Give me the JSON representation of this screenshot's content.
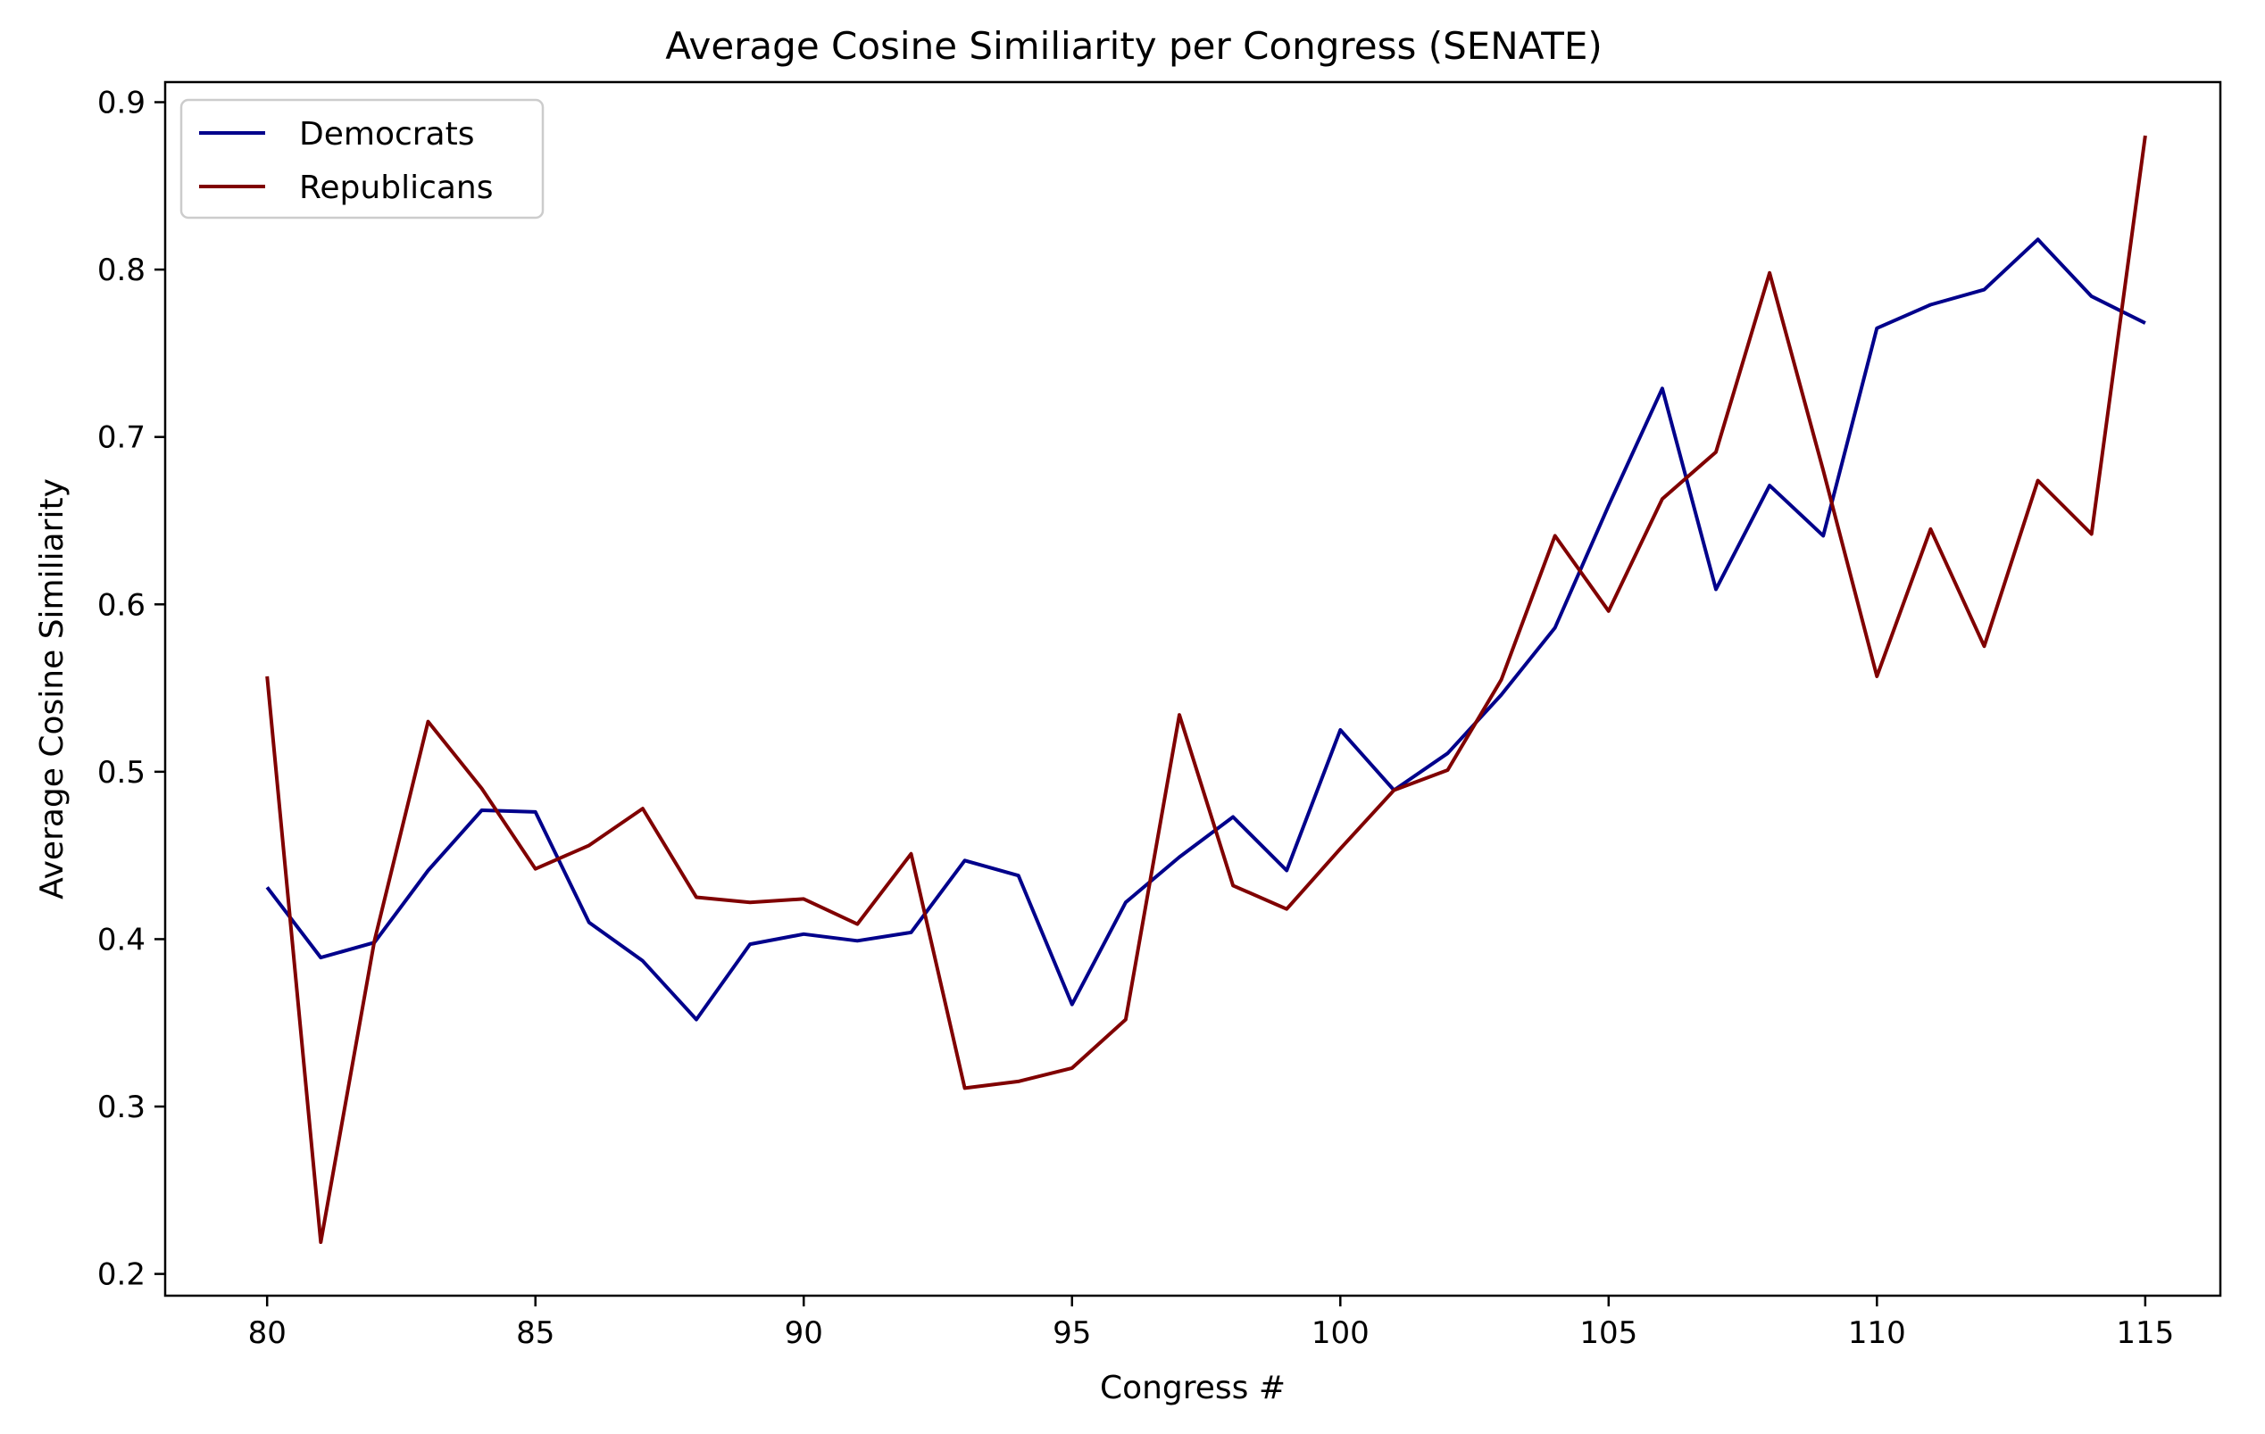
{
  "chart_data": {
    "type": "line",
    "title": "Average Cosine Similiarity per Congress (SENATE)",
    "xlabel": "Congress #",
    "ylabel": "Average Cosine Similiarity",
    "xlim": [
      78.1,
      116.4
    ],
    "ylim": [
      0.187,
      0.912
    ],
    "xticks": [
      80,
      85,
      90,
      95,
      100,
      105,
      110,
      115
    ],
    "yticks": [
      0.2,
      0.3,
      0.4,
      0.5,
      0.6,
      0.7,
      0.8,
      0.9
    ],
    "ytick_labels": [
      "0.2",
      "0.3",
      "0.4",
      "0.5",
      "0.6",
      "0.7",
      "0.8",
      "0.9"
    ],
    "grid": false,
    "legend_position": "top-left",
    "x": [
      80,
      81,
      82,
      83,
      84,
      85,
      86,
      87,
      88,
      89,
      90,
      91,
      92,
      93,
      94,
      95,
      96,
      97,
      98,
      99,
      100,
      101,
      102,
      103,
      104,
      105,
      106,
      107,
      108,
      109,
      110,
      111,
      112,
      113,
      114,
      115
    ],
    "series": [
      {
        "name": "Democrats",
        "color": "#00008b",
        "values": [
          0.431,
          0.389,
          0.398,
          0.441,
          0.477,
          0.476,
          0.41,
          0.387,
          0.352,
          0.397,
          0.403,
          0.399,
          0.404,
          0.447,
          0.438,
          0.361,
          0.422,
          0.449,
          0.473,
          0.441,
          0.525,
          0.489,
          0.511,
          0.546,
          0.586,
          0.659,
          0.729,
          0.609,
          0.671,
          0.641,
          0.765,
          0.779,
          0.788,
          0.818,
          0.784,
          0.768
        ]
      },
      {
        "name": "Republicans",
        "color": "#800000",
        "values": [
          0.557,
          0.219,
          0.399,
          0.53,
          0.49,
          0.442,
          0.456,
          0.478,
          0.425,
          0.422,
          0.424,
          0.409,
          0.451,
          0.311,
          0.315,
          0.323,
          0.352,
          0.534,
          0.432,
          0.418,
          0.454,
          0.489,
          0.501,
          0.555,
          0.641,
          0.596,
          0.663,
          0.691,
          0.798,
          0.68,
          0.557,
          0.645,
          0.575,
          0.674,
          0.642,
          0.88
        ]
      }
    ]
  }
}
